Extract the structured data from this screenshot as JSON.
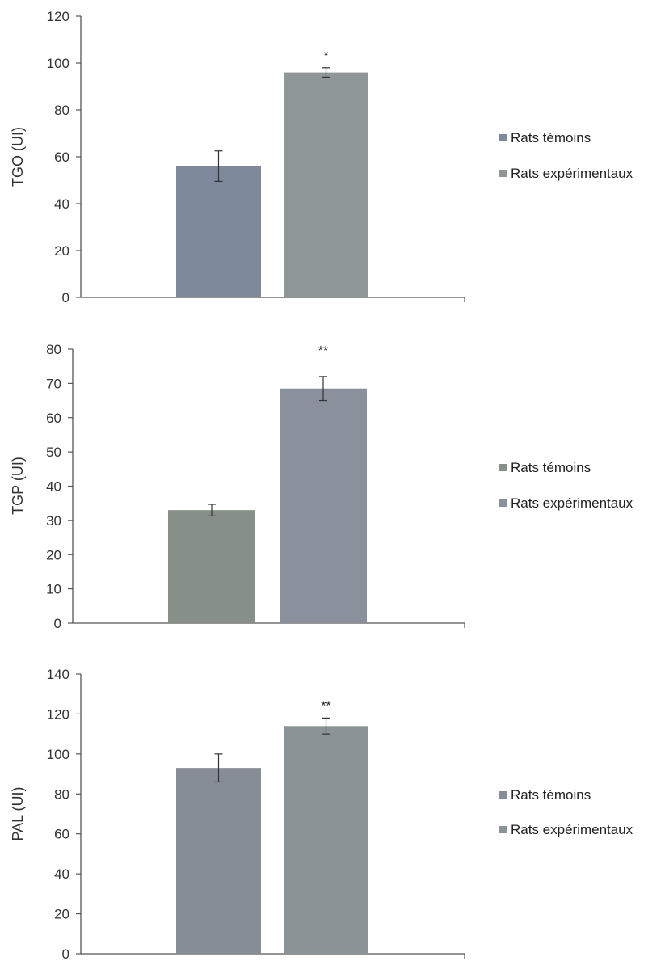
{
  "chart_data": [
    {
      "type": "bar",
      "ylabel": "TGO (UI)",
      "ylim": [
        0,
        120
      ],
      "yticks": [
        0,
        20,
        40,
        60,
        80,
        100,
        120
      ],
      "categories": [
        "Rats témoins",
        "Rats expérimentaux"
      ],
      "values": [
        56,
        96
      ],
      "errors": [
        6.5,
        2
      ],
      "significance": [
        "",
        "*"
      ],
      "legend": [
        "Rats témoins",
        "Rats expérimentaux"
      ],
      "legend_position": "right",
      "grid": false,
      "colors": [
        "#7e8a9b",
        "#8f9796"
      ]
    },
    {
      "type": "bar",
      "ylabel": "TGP (UI)",
      "ylim": [
        0,
        80
      ],
      "yticks": [
        0,
        10,
        20,
        30,
        40,
        50,
        60,
        70,
        80
      ],
      "categories": [
        "Rats témoins",
        "Rats expérimentaux"
      ],
      "values": [
        33,
        68.5
      ],
      "errors": [
        1.7,
        3.5
      ],
      "significance": [
        "",
        "**"
      ],
      "legend": [
        "Rats témoins",
        "Rats expérimentaux"
      ],
      "legend_position": "right",
      "grid": false,
      "colors": [
        "#869088",
        "#8b909d"
      ]
    },
    {
      "type": "bar",
      "ylabel": "PAL (UI)",
      "ylim": [
        0,
        140
      ],
      "yticks": [
        0,
        20,
        40,
        60,
        80,
        100,
        120,
        140
      ],
      "categories": [
        "Rats témoins",
        "Rats expérimentaux"
      ],
      "values": [
        93,
        114
      ],
      "errors": [
        7,
        4
      ],
      "significance": [
        "",
        "**"
      ],
      "legend": [
        "Rats témoins",
        "Rats expérimentaux"
      ],
      "legend_position": "right",
      "grid": false,
      "colors": [
        "#878d97",
        "#8a9497"
      ]
    }
  ]
}
